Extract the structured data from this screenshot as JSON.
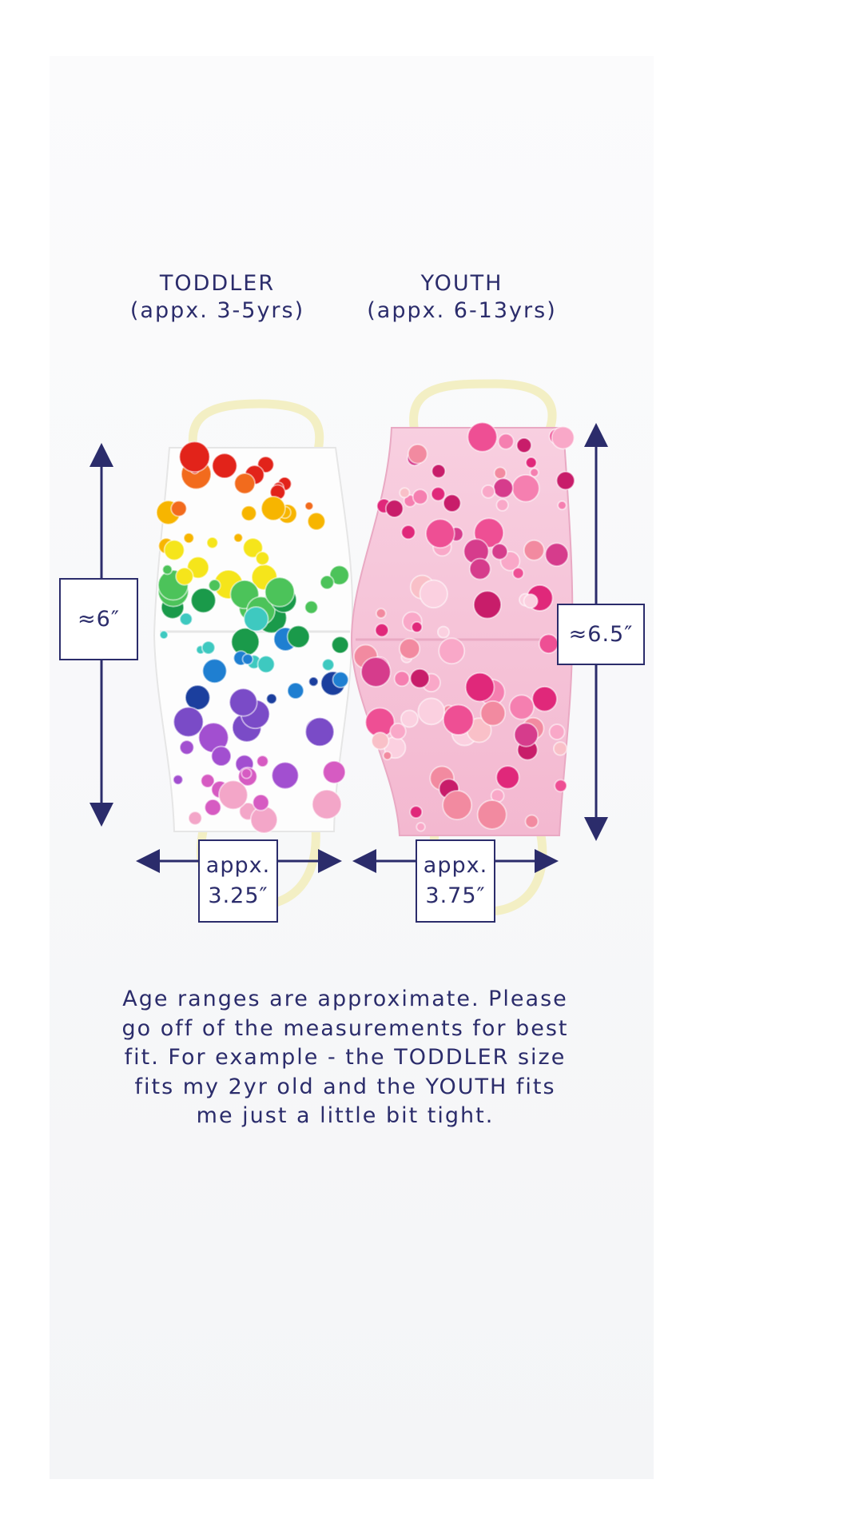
{
  "sizes": {
    "toddler": {
      "name": "TODDLER",
      "ages": "(appx. 3-5yrs)",
      "height": "≈6″",
      "width_label": "appx.",
      "width": "3.25″"
    },
    "youth": {
      "name": "YOUTH",
      "ages": "(appx. 6-13yrs)",
      "height": "≈6.5″",
      "width_label": "appx.",
      "width": "3.75″"
    }
  },
  "note": [
    "Age ranges are approximate. Please",
    "go off of the measurements for best",
    "fit. For example - the TODDLER size",
    "fits my 2yr old and the YOUTH fits",
    "me just a little bit tight."
  ],
  "colors": {
    "annotation": "#2b2c6b",
    "toddler_mask": "#ffffff",
    "youth_mask": "#f6c3d8",
    "ear_loop": "#f3efc4"
  }
}
